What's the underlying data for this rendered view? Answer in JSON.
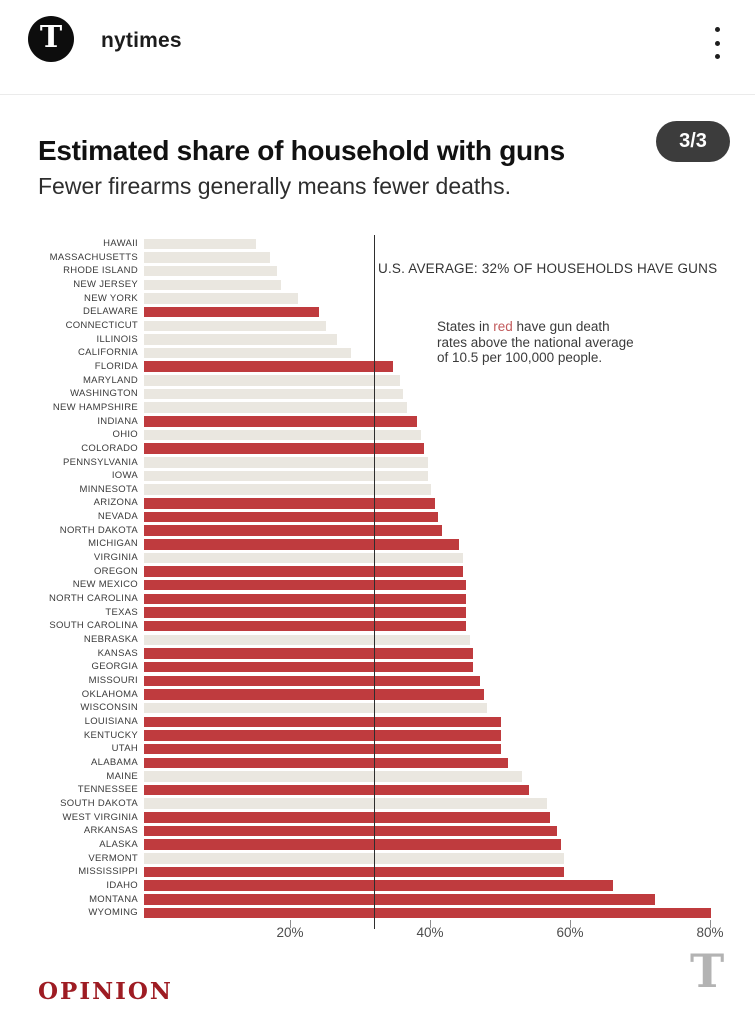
{
  "header": {
    "username": "nytimes",
    "avatar_glyph": "T",
    "menu_icon": "kebab-menu-icon"
  },
  "page_indicator": "3/3",
  "chart_data": {
    "type": "bar",
    "orientation": "horizontal",
    "title": "Estimated share of household with guns",
    "subtitle": "Fewer firearms generally means fewer deaths.",
    "value_unit": "%",
    "xlim": [
      0,
      82
    ],
    "xticks": [
      20,
      40,
      60,
      80
    ],
    "xtick_labels": [
      "20%",
      "40%",
      "60%",
      "80%"
    ],
    "grid": false,
    "average_line": {
      "value": 32,
      "label": "U.S. AVERAGE: 32% OF HOUSEHOLDS HAVE GUNS"
    },
    "note": {
      "line1_prefix": "States in ",
      "highlight_word": "red",
      "line1_suffix": " have gun death",
      "line2": "rates above the national average",
      "line3": "of 10.5 per 100,000 people."
    },
    "colors": {
      "above_average_bar": "#bf3b3e",
      "below_average_bar": "#eae7e0",
      "highlight_text": "#c25a5c",
      "average_line": "#2e2e2e"
    },
    "states": [
      {
        "name": "HAWAII",
        "value": 16,
        "above_average": false
      },
      {
        "name": "MASSACHUSETTS",
        "value": 18,
        "above_average": false
      },
      {
        "name": "RHODE ISLAND",
        "value": 19,
        "above_average": false
      },
      {
        "name": "NEW JERSEY",
        "value": 19.5,
        "above_average": false
      },
      {
        "name": "NEW YORK",
        "value": 22,
        "above_average": false
      },
      {
        "name": "DELAWARE",
        "value": 25,
        "above_average": true
      },
      {
        "name": "CONNECTICUT",
        "value": 26,
        "above_average": false
      },
      {
        "name": "ILLINOIS",
        "value": 27.5,
        "above_average": false
      },
      {
        "name": "CALIFORNIA",
        "value": 29.5,
        "above_average": false
      },
      {
        "name": "FLORIDA",
        "value": 35.5,
        "above_average": true
      },
      {
        "name": "MARYLAND",
        "value": 36.5,
        "above_average": false
      },
      {
        "name": "WASHINGTON",
        "value": 37,
        "above_average": false
      },
      {
        "name": "NEW HAMPSHIRE",
        "value": 37.5,
        "above_average": false
      },
      {
        "name": "INDIANA",
        "value": 39,
        "above_average": true
      },
      {
        "name": "OHIO",
        "value": 39.5,
        "above_average": false
      },
      {
        "name": "COLORADO",
        "value": 40,
        "above_average": true
      },
      {
        "name": "PENNSYLVANIA",
        "value": 40.5,
        "above_average": false
      },
      {
        "name": "IOWA",
        "value": 40.5,
        "above_average": false
      },
      {
        "name": "MINNESOTA",
        "value": 41,
        "above_average": false
      },
      {
        "name": "ARIZONA",
        "value": 41.5,
        "above_average": true
      },
      {
        "name": "NEVADA",
        "value": 42,
        "above_average": true
      },
      {
        "name": "NORTH DAKOTA",
        "value": 42.5,
        "above_average": true
      },
      {
        "name": "MICHIGAN",
        "value": 45,
        "above_average": true
      },
      {
        "name": "VIRGINIA",
        "value": 45.5,
        "above_average": false
      },
      {
        "name": "OREGON",
        "value": 45.5,
        "above_average": true
      },
      {
        "name": "NEW MEXICO",
        "value": 46,
        "above_average": true
      },
      {
        "name": "NORTH CAROLINA",
        "value": 46,
        "above_average": true
      },
      {
        "name": "TEXAS",
        "value": 46,
        "above_average": true
      },
      {
        "name": "SOUTH CAROLINA",
        "value": 46,
        "above_average": true
      },
      {
        "name": "NEBRASKA",
        "value": 46.5,
        "above_average": false
      },
      {
        "name": "KANSAS",
        "value": 47,
        "above_average": true
      },
      {
        "name": "GEORGIA",
        "value": 47,
        "above_average": true
      },
      {
        "name": "MISSOURI",
        "value": 48,
        "above_average": true
      },
      {
        "name": "OKLAHOMA",
        "value": 48.5,
        "above_average": true
      },
      {
        "name": "WISCONSIN",
        "value": 49,
        "above_average": false
      },
      {
        "name": "LOUISIANA",
        "value": 51,
        "above_average": true
      },
      {
        "name": "KENTUCKY",
        "value": 51,
        "above_average": true
      },
      {
        "name": "UTAH",
        "value": 51,
        "above_average": true
      },
      {
        "name": "ALABAMA",
        "value": 52,
        "above_average": true
      },
      {
        "name": "MAINE",
        "value": 54,
        "above_average": false
      },
      {
        "name": "TENNESSEE",
        "value": 55,
        "above_average": true
      },
      {
        "name": "SOUTH DAKOTA",
        "value": 57.5,
        "above_average": false
      },
      {
        "name": "WEST VIRGINIA",
        "value": 58,
        "above_average": true
      },
      {
        "name": "ARKANSAS",
        "value": 59,
        "above_average": true
      },
      {
        "name": "ALASKA",
        "value": 59.5,
        "above_average": true
      },
      {
        "name": "VERMONT",
        "value": 60,
        "above_average": false
      },
      {
        "name": "MISSISSIPPI",
        "value": 60,
        "above_average": true
      },
      {
        "name": "IDAHO",
        "value": 67,
        "above_average": true
      },
      {
        "name": "MONTANA",
        "value": 73,
        "above_average": true
      },
      {
        "name": "WYOMING",
        "value": 81,
        "above_average": true
      }
    ]
  },
  "footer": {
    "section_label": "OPINION",
    "logo_glyph": "T"
  }
}
